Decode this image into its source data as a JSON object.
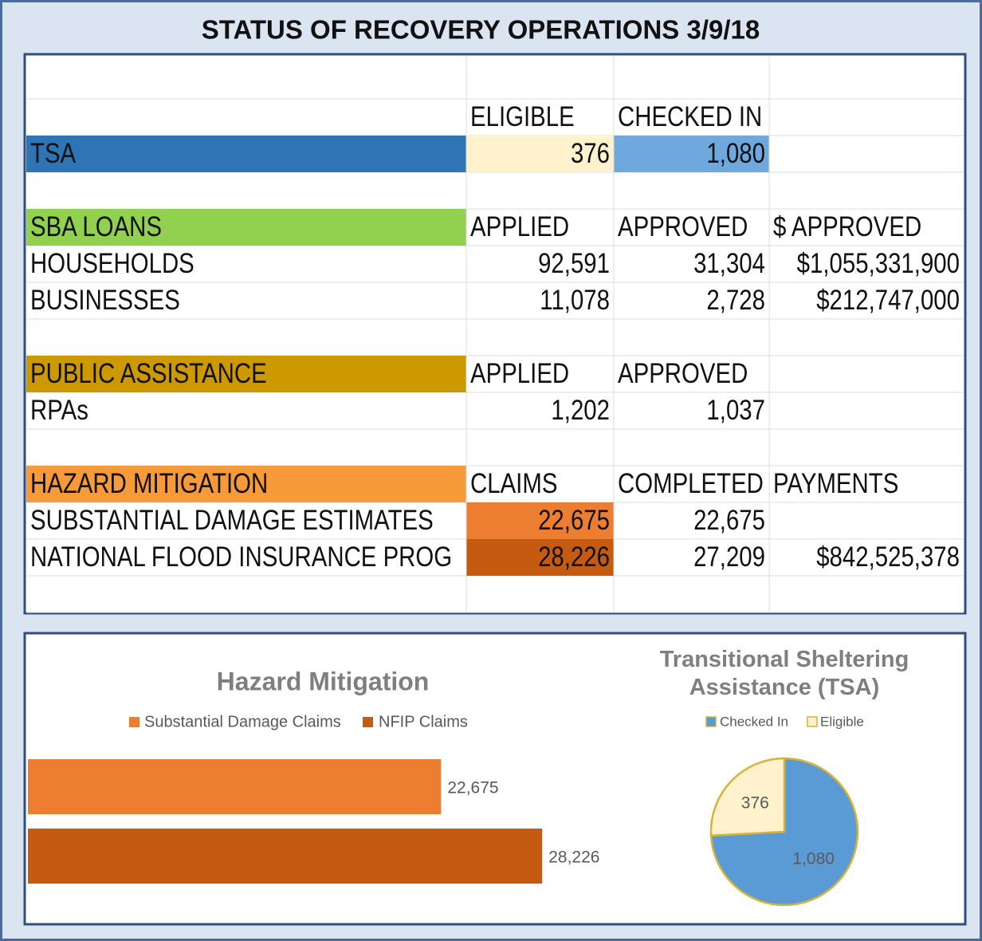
{
  "title": "STATUS OF RECOVERY OPERATIONS 3/9/18",
  "table": {
    "rows": [
      null,
      [
        null,
        "ELIGIBLE",
        "CHECKED IN",
        null
      ],
      [
        "TSA",
        "376",
        "1,080",
        null
      ],
      null,
      [
        "SBA LOANS",
        "APPLIED",
        "APPROVED",
        "$ APPROVED"
      ],
      [
        "HOUSEHOLDS",
        "92,591",
        "31,304",
        "$1,055,331,900"
      ],
      [
        "BUSINESSES",
        "11,078",
        "2,728",
        "$212,747,000"
      ],
      null,
      [
        "PUBLIC ASSISTANCE",
        "APPLIED",
        "APPROVED",
        null
      ],
      [
        "RPAs",
        "1,202",
        "1,037",
        null
      ],
      null,
      [
        "HAZARD MITIGATION",
        "CLAIMS",
        "COMPLETED",
        "PAYMENTS"
      ],
      [
        "SUBSTANTIAL DAMAGE ESTIMATES",
        "22,675",
        "22,675",
        null
      ],
      [
        "NATIONAL FLOOD INSURANCE PROG",
        "28,226",
        "27,209",
        "$842,525,378"
      ],
      null
    ]
  },
  "chart_data": [
    {
      "type": "bar",
      "orientation": "horizontal",
      "title": "Hazard Mitigation",
      "xlim": [
        0,
        50000
      ],
      "series": [
        {
          "name": "Substantial Damage Claims",
          "color": "#ed7d31",
          "values": [
            22675
          ],
          "value_labels": [
            "22,675"
          ]
        },
        {
          "name": "NFIP Claims",
          "color": "#c55a11",
          "values": [
            28226
          ],
          "value_labels": [
            "28,226"
          ]
        }
      ]
    },
    {
      "type": "pie",
      "title": "Transitional Sheltering Assistance (TSA)",
      "categories": [
        "Checked In",
        "Eligible"
      ],
      "values": [
        1080,
        376
      ],
      "value_labels": [
        "1,080",
        "376"
      ],
      "colors": [
        "#5b9bd5",
        "#fff2cc"
      ]
    }
  ]
}
